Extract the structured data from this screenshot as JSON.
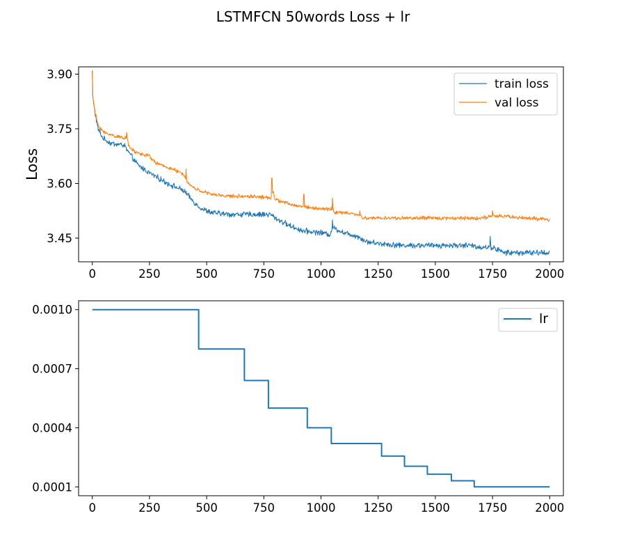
{
  "figure": {
    "title": "LSTMFCN 50words Loss + lr"
  },
  "colors": {
    "train": "#1f77b4",
    "val": "#ff7f0e",
    "lr": "#1f77b4",
    "axis": "#000000",
    "legend_border": "#cccccc"
  },
  "chart_data": [
    {
      "type": "line",
      "title": "",
      "xlabel": "",
      "ylabel": "Loss",
      "xlim": [
        -60,
        2060
      ],
      "ylim": [
        3.385,
        3.92
      ],
      "xticks": [
        0,
        250,
        500,
        750,
        1000,
        1250,
        1500,
        1750,
        2000
      ],
      "xtick_labels": [
        "0",
        "250",
        "500",
        "750",
        "1000",
        "1250",
        "1500",
        "1750",
        "2000"
      ],
      "yticks": [
        3.45,
        3.6,
        3.75,
        3.9
      ],
      "ytick_labels": [
        "3.45",
        "3.60",
        "3.75",
        "3.90"
      ],
      "grid": false,
      "legend": "top-right",
      "series": [
        {
          "name": "train loss",
          "color": "#1f77b4",
          "noise": 0.006,
          "points": [
            [
              0,
              3.91
            ],
            [
              2,
              3.84
            ],
            [
              10,
              3.8
            ],
            [
              25,
              3.75
            ],
            [
              45,
              3.725
            ],
            [
              80,
              3.71
            ],
            [
              140,
              3.705
            ],
            [
              148,
              3.695
            ],
            [
              170,
              3.675
            ],
            [
              200,
              3.65
            ],
            [
              260,
              3.625
            ],
            [
              330,
              3.6
            ],
            [
              400,
              3.58
            ],
            [
              450,
              3.545
            ],
            [
              480,
              3.53
            ],
            [
              520,
              3.52
            ],
            [
              600,
              3.515
            ],
            [
              700,
              3.515
            ],
            [
              780,
              3.515
            ],
            [
              800,
              3.505
            ],
            [
              860,
              3.485
            ],
            [
              920,
              3.47
            ],
            [
              1000,
              3.465
            ],
            [
              1040,
              3.46
            ],
            [
              1050,
              3.48
            ],
            [
              1100,
              3.465
            ],
            [
              1160,
              3.455
            ],
            [
              1200,
              3.44
            ],
            [
              1260,
              3.435
            ],
            [
              1350,
              3.43
            ],
            [
              1500,
              3.43
            ],
            [
              1650,
              3.43
            ],
            [
              1700,
              3.425
            ],
            [
              1750,
              3.425
            ],
            [
              1800,
              3.41
            ],
            [
              1900,
              3.41
            ],
            [
              2000,
              3.41
            ]
          ]
        },
        {
          "name": "val loss",
          "color": "#ff7f0e",
          "noise": 0.004,
          "points": [
            [
              0,
              3.91
            ],
            [
              2,
              3.84
            ],
            [
              10,
              3.8
            ],
            [
              25,
              3.76
            ],
            [
              50,
              3.74
            ],
            [
              100,
              3.73
            ],
            [
              145,
              3.725
            ],
            [
              150,
              3.73
            ],
            [
              160,
              3.7
            ],
            [
              190,
              3.685
            ],
            [
              250,
              3.675
            ],
            [
              270,
              3.66
            ],
            [
              300,
              3.65
            ],
            [
              350,
              3.64
            ],
            [
              380,
              3.63
            ],
            [
              400,
              3.625
            ],
            [
              420,
              3.6
            ],
            [
              450,
              3.585
            ],
            [
              520,
              3.57
            ],
            [
              600,
              3.565
            ],
            [
              700,
              3.565
            ],
            [
              780,
              3.56
            ],
            [
              790,
              3.58
            ],
            [
              800,
              3.555
            ],
            [
              830,
              3.55
            ],
            [
              880,
              3.54
            ],
            [
              1000,
              3.53
            ],
            [
              1050,
              3.53
            ],
            [
              1060,
              3.52
            ],
            [
              1100,
              3.52
            ],
            [
              1160,
              3.515
            ],
            [
              1180,
              3.505
            ],
            [
              1250,
              3.505
            ],
            [
              1400,
              3.505
            ],
            [
              1600,
              3.505
            ],
            [
              1700,
              3.505
            ],
            [
              1750,
              3.51
            ],
            [
              1800,
              3.51
            ],
            [
              1900,
              3.505
            ],
            [
              2000,
              3.5
            ]
          ]
        }
      ],
      "spikes": [
        {
          "series": "val loss",
          "x": 150,
          "y": 3.74
        },
        {
          "series": "val loss",
          "x": 410,
          "y": 3.64
        },
        {
          "series": "val loss",
          "x": 785,
          "y": 3.615
        },
        {
          "series": "val loss",
          "x": 925,
          "y": 3.57
        },
        {
          "series": "val loss",
          "x": 1050,
          "y": 3.56
        },
        {
          "series": "val loss",
          "x": 1170,
          "y": 3.525
        },
        {
          "series": "val loss",
          "x": 1750,
          "y": 3.525
        },
        {
          "series": "train loss",
          "x": 1050,
          "y": 3.5
        },
        {
          "series": "train loss",
          "x": 1740,
          "y": 3.455
        }
      ]
    },
    {
      "type": "line",
      "title": "",
      "xlabel": "",
      "ylabel": "",
      "xlim": [
        -60,
        2060
      ],
      "ylim": [
        5.5e-05,
        0.001045
      ],
      "xticks": [
        0,
        250,
        500,
        750,
        1000,
        1250,
        1500,
        1750,
        2000
      ],
      "xtick_labels": [
        "0",
        "250",
        "500",
        "750",
        "1000",
        "1250",
        "1500",
        "1750",
        "2000"
      ],
      "yticks": [
        0.0001,
        0.0004,
        0.0007,
        0.001
      ],
      "ytick_labels": [
        "0.0001",
        "0.0004",
        "0.0007",
        "0.0010"
      ],
      "grid": false,
      "legend": "top-right",
      "series": [
        {
          "name": "lr",
          "color": "#1f77b4",
          "step": true,
          "points": [
            [
              0,
              0.001
            ],
            [
              465,
              0.001
            ],
            [
              465,
              0.0008
            ],
            [
              665,
              0.0008
            ],
            [
              665,
              0.00064
            ],
            [
              770,
              0.00064
            ],
            [
              770,
              0.0005
            ],
            [
              940,
              0.0005
            ],
            [
              940,
              0.0004
            ],
            [
              1045,
              0.0004
            ],
            [
              1045,
              0.00032
            ],
            [
              1265,
              0.00032
            ],
            [
              1265,
              0.000256
            ],
            [
              1365,
              0.000256
            ],
            [
              1365,
              0.000205
            ],
            [
              1465,
              0.000205
            ],
            [
              1465,
              0.000164
            ],
            [
              1570,
              0.000164
            ],
            [
              1570,
              0.000131
            ],
            [
              1670,
              0.000131
            ],
            [
              1670,
              0.0001
            ],
            [
              2000,
              0.0001
            ]
          ]
        }
      ]
    }
  ]
}
